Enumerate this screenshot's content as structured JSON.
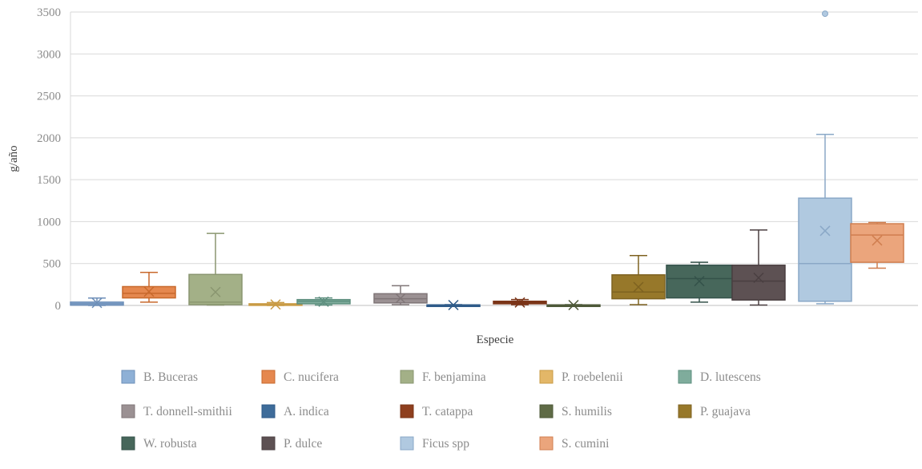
{
  "chart_data": {
    "type": "box",
    "title": "",
    "xlabel": "Especie",
    "ylabel": "g/año",
    "ylim": [
      0,
      3500
    ],
    "yticks": [
      0,
      500,
      1000,
      1500,
      2000,
      2500,
      3000,
      3500
    ],
    "grid": true,
    "legend_position": "bottom",
    "series": [
      {
        "name": "B. Buceras",
        "color": "#8EB0D6",
        "edge": "#6E8FB8",
        "min": 0,
        "q1": 3,
        "median": 20,
        "q3": 40,
        "max": 88,
        "mean": 30,
        "outliers": []
      },
      {
        "name": "C. nucifera",
        "color": "#E5884F",
        "edge": "#C8692C",
        "min": 40,
        "q1": 90,
        "median": 145,
        "q3": 225,
        "max": 395,
        "mean": 165,
        "outliers": []
      },
      {
        "name": "F. benjamina",
        "color": "#A3B087",
        "edge": "#8A9670",
        "min": 5,
        "q1": 10,
        "median": 40,
        "q3": 370,
        "max": 860,
        "mean": 160,
        "outliers": []
      },
      {
        "name": "P. roebelenii",
        "color": "#E3B768",
        "edge": "#C99B45",
        "min": 0,
        "q1": 2,
        "median": 10,
        "q3": 20,
        "max": 35,
        "mean": 12,
        "outliers": []
      },
      {
        "name": "D. lutescens",
        "color": "#7FAC9C",
        "edge": "#5E8F7F",
        "min": 5,
        "q1": 20,
        "median": 50,
        "q3": 70,
        "max": 90,
        "mean": 45,
        "outliers": []
      },
      {
        "name": "T. donnell-smithii",
        "color": "#9B9193",
        "edge": "#7F7577",
        "min": 10,
        "q1": 30,
        "median": 80,
        "q3": 140,
        "max": 235,
        "mean": 85,
        "outliers": []
      },
      {
        "name": "A. indica",
        "color": "#3E6C9A",
        "edge": "#2E5A88",
        "min": 0,
        "q1": 0,
        "median": 3,
        "q3": 7,
        "max": 10,
        "mean": 5,
        "outliers": []
      },
      {
        "name": "T. catappa",
        "color": "#8E3F1E",
        "edge": "#7A3418",
        "min": 10,
        "q1": 20,
        "median": 35,
        "q3": 50,
        "max": 70,
        "mean": 35,
        "outliers": []
      },
      {
        "name": "S. humilis",
        "color": "#5F6B46",
        "edge": "#4D5838",
        "min": 0,
        "q1": 0,
        "median": 3,
        "q3": 7,
        "max": 10,
        "mean": 5,
        "outliers": []
      },
      {
        "name": "P. guajava",
        "color": "#97782A",
        "edge": "#7E6220",
        "min": 10,
        "q1": 80,
        "median": 160,
        "q3": 365,
        "max": 595,
        "mean": 220,
        "outliers": []
      },
      {
        "name": "W. robusta",
        "color": "#47675B",
        "edge": "#34524A",
        "min": 40,
        "q1": 90,
        "median": 320,
        "q3": 480,
        "max": 515,
        "mean": 290,
        "outliers": []
      },
      {
        "name": "P. dulce",
        "color": "#5D5153",
        "edge": "#4A3F41",
        "min": 5,
        "q1": 65,
        "median": 290,
        "q3": 480,
        "max": 900,
        "mean": 330,
        "outliers": []
      },
      {
        "name": "Ficus spp",
        "color": "#B0C9E0",
        "edge": "#8AA8C7",
        "min": 20,
        "q1": 50,
        "median": 500,
        "q3": 1280,
        "max": 2040,
        "mean": 890,
        "outliers": [
          3480
        ]
      },
      {
        "name": "S. cumini",
        "color": "#EBA57C",
        "edge": "#D07E4F",
        "min": 445,
        "q1": 515,
        "median": 840,
        "q3": 975,
        "max": 990,
        "mean": 775,
        "outliers": []
      }
    ]
  }
}
